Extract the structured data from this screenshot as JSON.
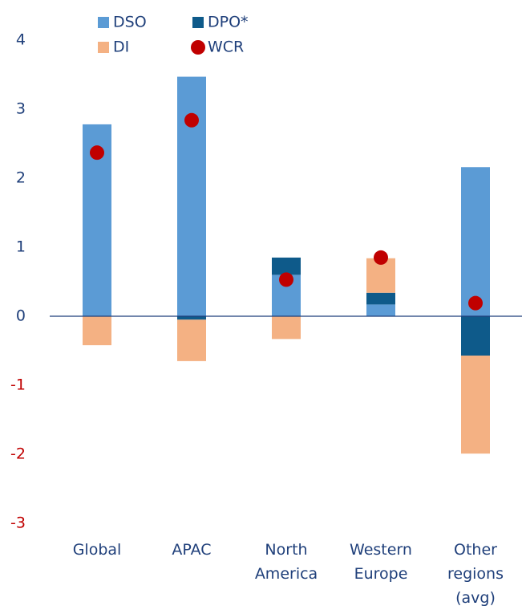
{
  "chart_data": {
    "type": "stacked_bar_dot",
    "categories": [
      "Global",
      "APAC",
      "North America",
      "Western Europe",
      "Other regions (avg)"
    ],
    "series": [
      {
        "name": "DSO",
        "color": "#5b9bd5",
        "values": [
          2.78,
          3.47,
          0.6,
          0.17,
          2.16
        ]
      },
      {
        "name": "DPO*",
        "color": "#0e5a8a",
        "values": [
          0,
          -0.05,
          0.25,
          0.17,
          -0.57
        ]
      },
      {
        "name": "DI",
        "color": "#f4b183",
        "values": [
          -0.42,
          -0.6,
          -0.33,
          0.5,
          -1.42
        ]
      },
      {
        "name": "WCR",
        "color": "#c00000",
        "kind": "dot",
        "values": [
          2.37,
          2.84,
          0.53,
          0.85,
          0.19
        ]
      }
    ],
    "ylim": [
      -3,
      4
    ],
    "yticks": [
      -3,
      -2,
      -1,
      0,
      1,
      2,
      3,
      4
    ],
    "tick_color": "#1f3f7a",
    "negative_tick_color": "#c00000",
    "axis_color": "#1f3f7a"
  }
}
